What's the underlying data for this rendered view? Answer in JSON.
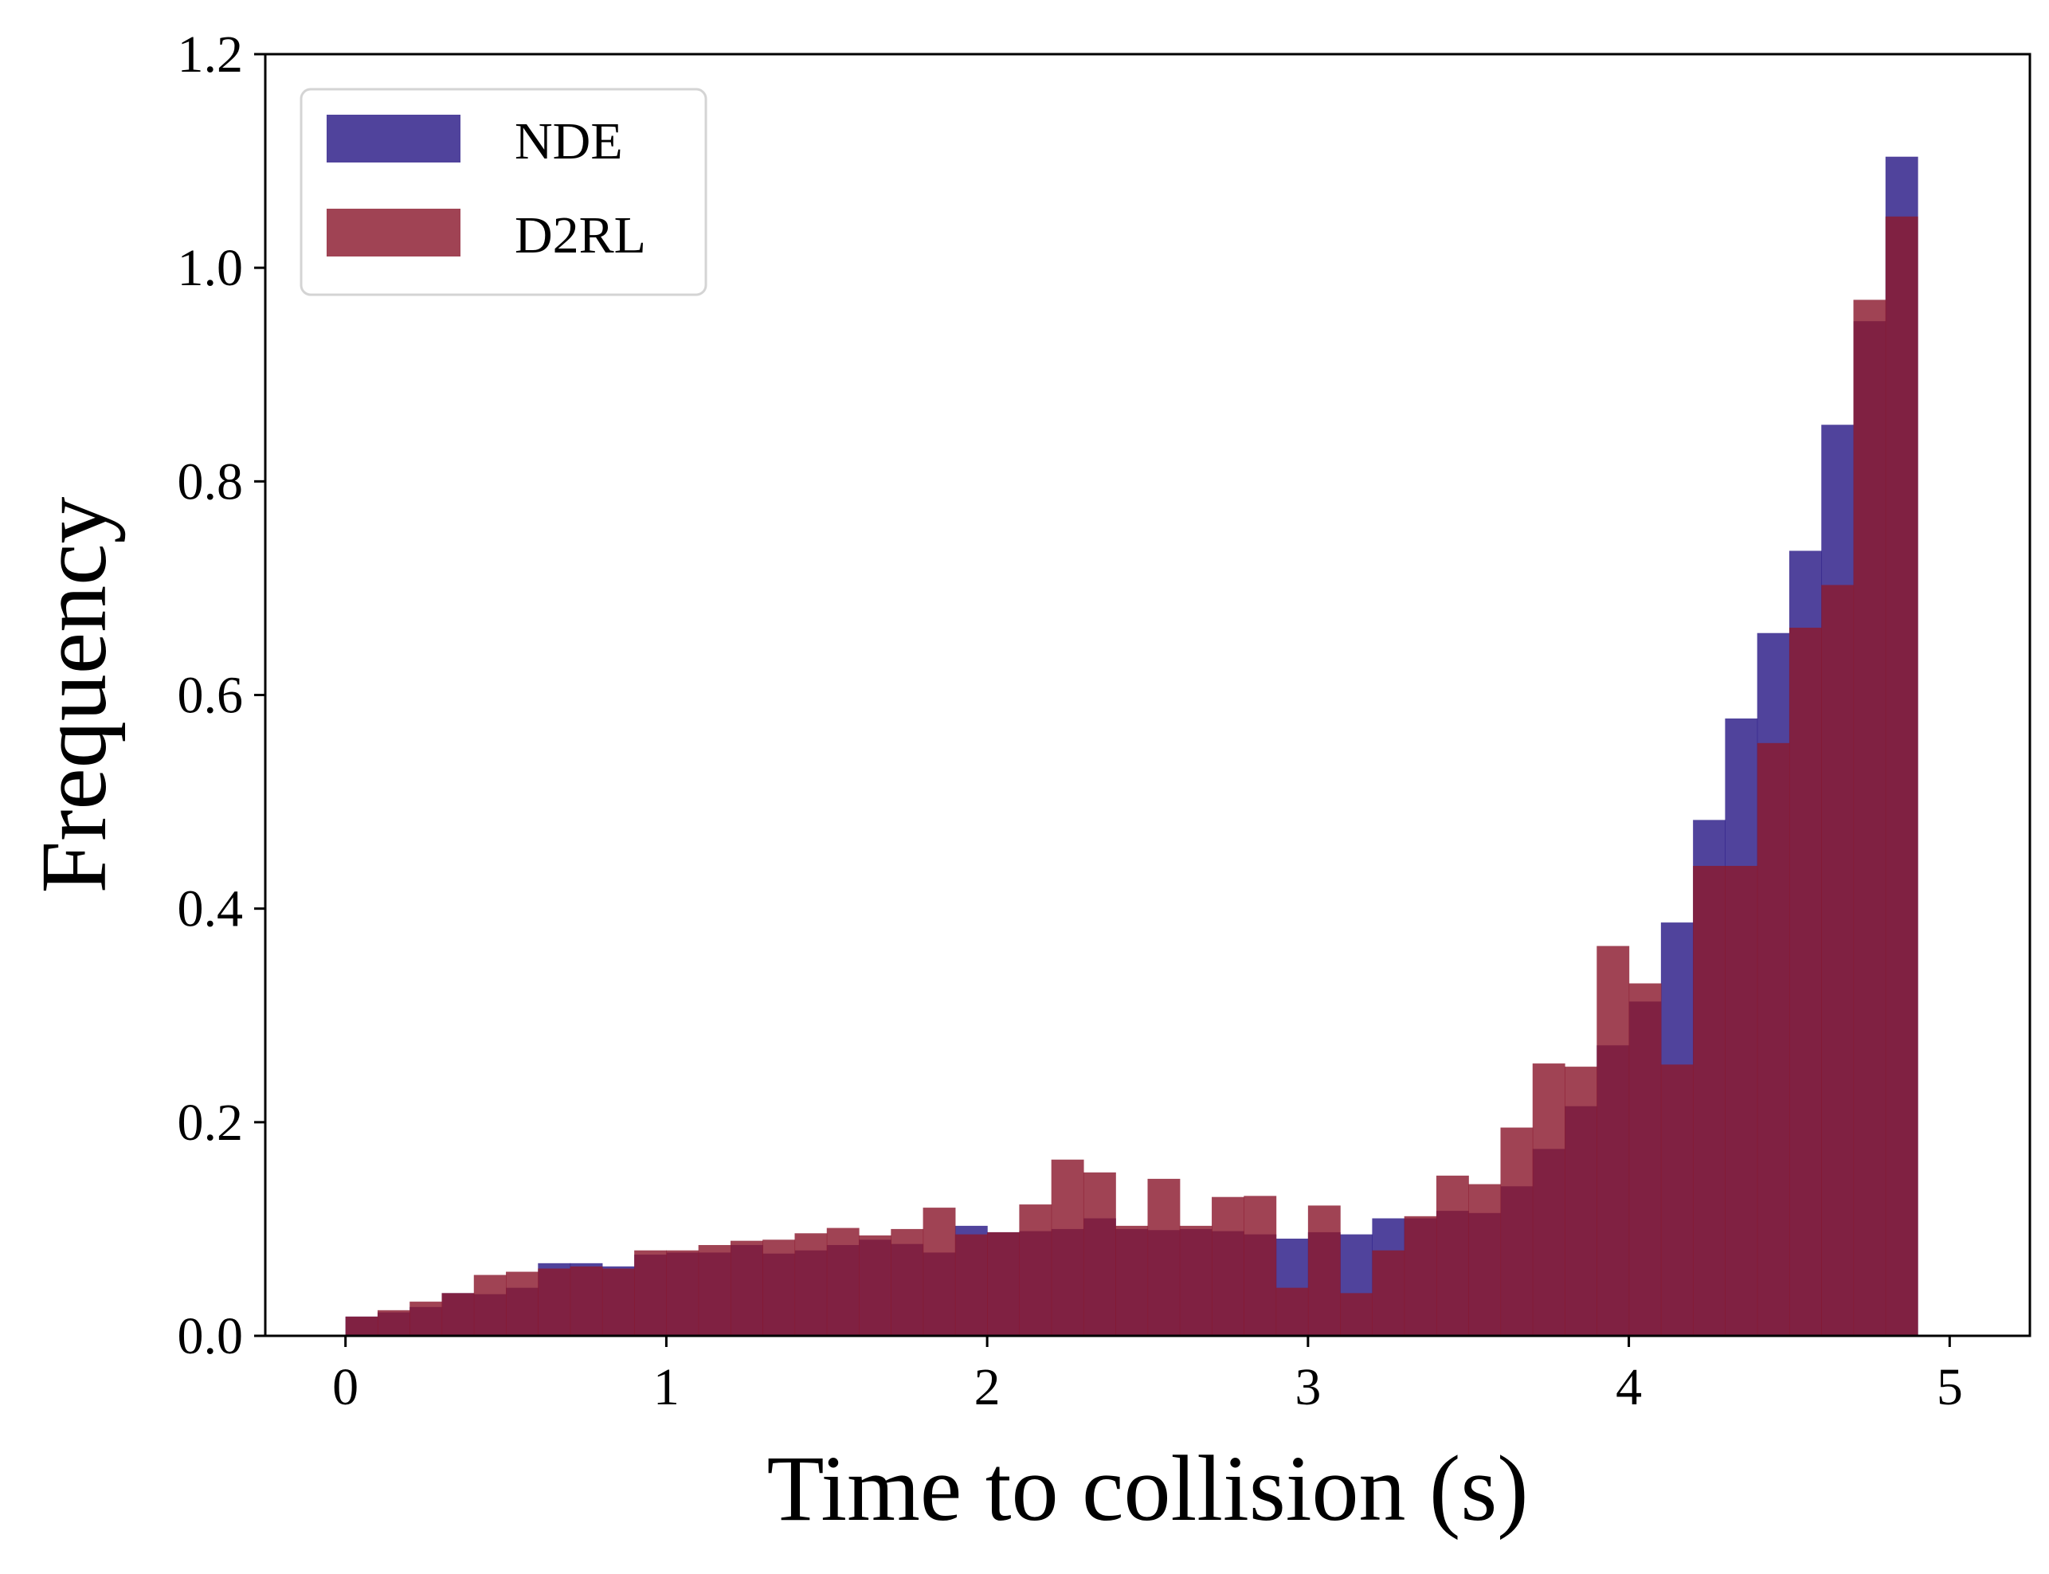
{
  "chart_data": {
    "type": "bar",
    "subtype": "overlaid-histogram",
    "title": "",
    "xlabel": "Time to collision (s)",
    "ylabel": "Frequency",
    "xlim": [
      -0.25,
      5.25
    ],
    "ylim": [
      0.0,
      1.2
    ],
    "xticks": [
      0,
      1,
      2,
      3,
      4,
      5
    ],
    "xtick_labels": [
      "0",
      "1",
      "2",
      "3",
      "4",
      "5"
    ],
    "yticks": [
      0.0,
      0.2,
      0.4,
      0.6,
      0.8,
      1.0,
      1.2
    ],
    "ytick_labels": [
      "0.0",
      "0.2",
      "0.4",
      "0.6",
      "0.8",
      "1.0",
      "1.2"
    ],
    "grid": false,
    "legend_position": "top-left",
    "bin_edges_range": [
      0,
      5
    ],
    "bin_count": 50,
    "series": [
      {
        "name": "NDE",
        "color": "#2a1a86",
        "opacity": 0.82,
        "values": [
          0.018,
          0.022,
          0.027,
          0.04,
          0.039,
          0.045,
          0.068,
          0.068,
          0.065,
          0.076,
          0.078,
          0.078,
          0.085,
          0.077,
          0.08,
          0.085,
          0.09,
          0.086,
          0.078,
          0.103,
          0.097,
          0.098,
          0.1,
          0.11,
          0.1,
          0.099,
          0.1,
          0.098,
          0.095,
          0.091,
          0.097,
          0.095,
          0.11,
          0.11,
          0.117,
          0.115,
          0.14,
          0.175,
          0.215,
          0.272,
          0.313,
          0.387,
          0.483,
          0.578,
          0.658,
          0.735,
          0.853,
          0.95,
          1.104,
          0.0
        ]
      },
      {
        "name": "D2RL",
        "color": "#8b1a2e",
        "opacity": 0.82,
        "values": [
          0.018,
          0.024,
          0.032,
          0.04,
          0.057,
          0.06,
          0.063,
          0.065,
          0.063,
          0.08,
          0.08,
          0.085,
          0.089,
          0.09,
          0.096,
          0.101,
          0.094,
          0.1,
          0.12,
          0.095,
          0.097,
          0.123,
          0.165,
          0.153,
          0.103,
          0.147,
          0.103,
          0.13,
          0.131,
          0.045,
          0.122,
          0.04,
          0.08,
          0.112,
          0.15,
          0.142,
          0.195,
          0.255,
          0.252,
          0.365,
          0.33,
          0.254,
          0.44,
          0.44,
          0.555,
          0.663,
          0.703,
          0.97,
          1.048,
          0.0
        ]
      }
    ]
  }
}
